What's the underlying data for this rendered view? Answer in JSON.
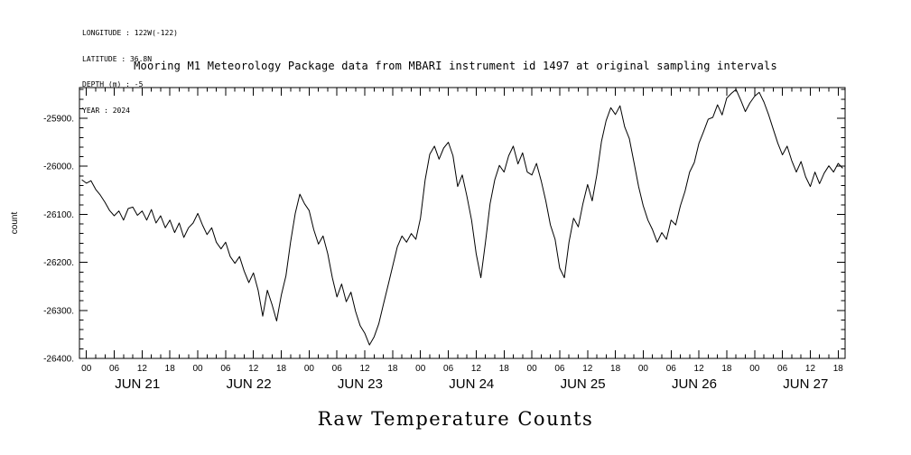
{
  "header": {
    "lines": [
      "LONGITUDE : 122W(-122)",
      "LATITUDE : 36.8N",
      "DEPTH (m) : -5",
      "YEAR : 2024"
    ]
  },
  "title": "Mooring M1 Meteorology Package data from MBARI instrument id 1497 at original sampling intervals",
  "bottom_title": "Raw Temperature Counts",
  "chart_data": {
    "type": "line",
    "title": "Mooring M1 Meteorology Package data from MBARI instrument id 1497 at original sampling intervals",
    "xlabel": "",
    "ylabel": "count",
    "ylim": [
      -26400,
      -25836
    ],
    "y_major_ticks": [
      -26400,
      -26300,
      -26200,
      -26100,
      -26000,
      -25900
    ],
    "y_tick_labels": [
      "-26400.",
      "-26300.",
      "-26200.",
      "-26100.",
      "-26000.",
      "-25900."
    ],
    "y_minor_step": 20,
    "x_hours_lim": [
      -1.5,
      163.5
    ],
    "x_major_step_hours": 6,
    "x_minor_step_hours": 2,
    "hour_labels": [
      "00",
      "06",
      "12",
      "18"
    ],
    "days": [
      {
        "label": "JUN 21",
        "start_hour": 0
      },
      {
        "label": "JUN 22",
        "start_hour": 24
      },
      {
        "label": "JUN 23",
        "start_hour": 48
      },
      {
        "label": "JUN 24",
        "start_hour": 72
      },
      {
        "label": "JUN 25",
        "start_hour": 96
      },
      {
        "label": "JUN 26",
        "start_hour": 120
      },
      {
        "label": "JUN 27",
        "start_hour": 144
      }
    ],
    "grid": false,
    "legend": "none",
    "line_color": "#000000",
    "series": [
      {
        "name": "raw_temperature_counts",
        "x_start_hour": -1,
        "x_step_hours": 1,
        "values": [
          -26028,
          -26035,
          -26030,
          -26048,
          -26060,
          -26075,
          -26092,
          -26103,
          -26093,
          -26112,
          -26088,
          -26085,
          -26102,
          -26093,
          -26112,
          -26090,
          -26118,
          -26103,
          -26128,
          -26112,
          -26138,
          -26118,
          -26148,
          -26128,
          -26118,
          -26098,
          -26122,
          -26142,
          -26128,
          -26158,
          -26172,
          -26158,
          -26188,
          -26202,
          -26188,
          -26218,
          -26242,
          -26222,
          -26258,
          -26312,
          -26258,
          -26288,
          -26322,
          -26268,
          -26228,
          -26158,
          -26098,
          -26058,
          -26078,
          -26092,
          -26132,
          -26162,
          -26145,
          -26182,
          -26232,
          -26272,
          -26245,
          -26282,
          -26262,
          -26302,
          -26332,
          -26348,
          -26372,
          -26355,
          -26328,
          -26288,
          -26248,
          -26208,
          -26168,
          -26145,
          -26158,
          -26140,
          -26152,
          -26108,
          -26028,
          -25975,
          -25958,
          -25985,
          -25962,
          -25950,
          -25978,
          -26042,
          -26018,
          -26062,
          -26112,
          -26182,
          -26232,
          -26158,
          -26078,
          -26028,
          -25998,
          -26012,
          -25978,
          -25958,
          -25995,
          -25972,
          -26012,
          -26018,
          -25994,
          -26030,
          -26072,
          -26122,
          -26152,
          -26212,
          -26232,
          -26158,
          -26108,
          -26126,
          -26078,
          -26038,
          -26072,
          -26018,
          -25948,
          -25905,
          -25878,
          -25892,
          -25874,
          -25918,
          -25942,
          -25992,
          -26042,
          -26082,
          -26112,
          -26132,
          -26158,
          -26138,
          -26152,
          -26112,
          -26122,
          -26082,
          -26052,
          -26012,
          -25992,
          -25952,
          -25928,
          -25902,
          -25898,
          -25872,
          -25893,
          -25858,
          -25848,
          -25840,
          -25862,
          -25886,
          -25868,
          -25854,
          -25846,
          -25866,
          -25892,
          -25922,
          -25952,
          -25976,
          -25958,
          -25988,
          -26012,
          -25990,
          -26022,
          -26042,
          -26012,
          -26036,
          -26014,
          -25999,
          -26012,
          -25994,
          -26004
        ]
      }
    ]
  }
}
